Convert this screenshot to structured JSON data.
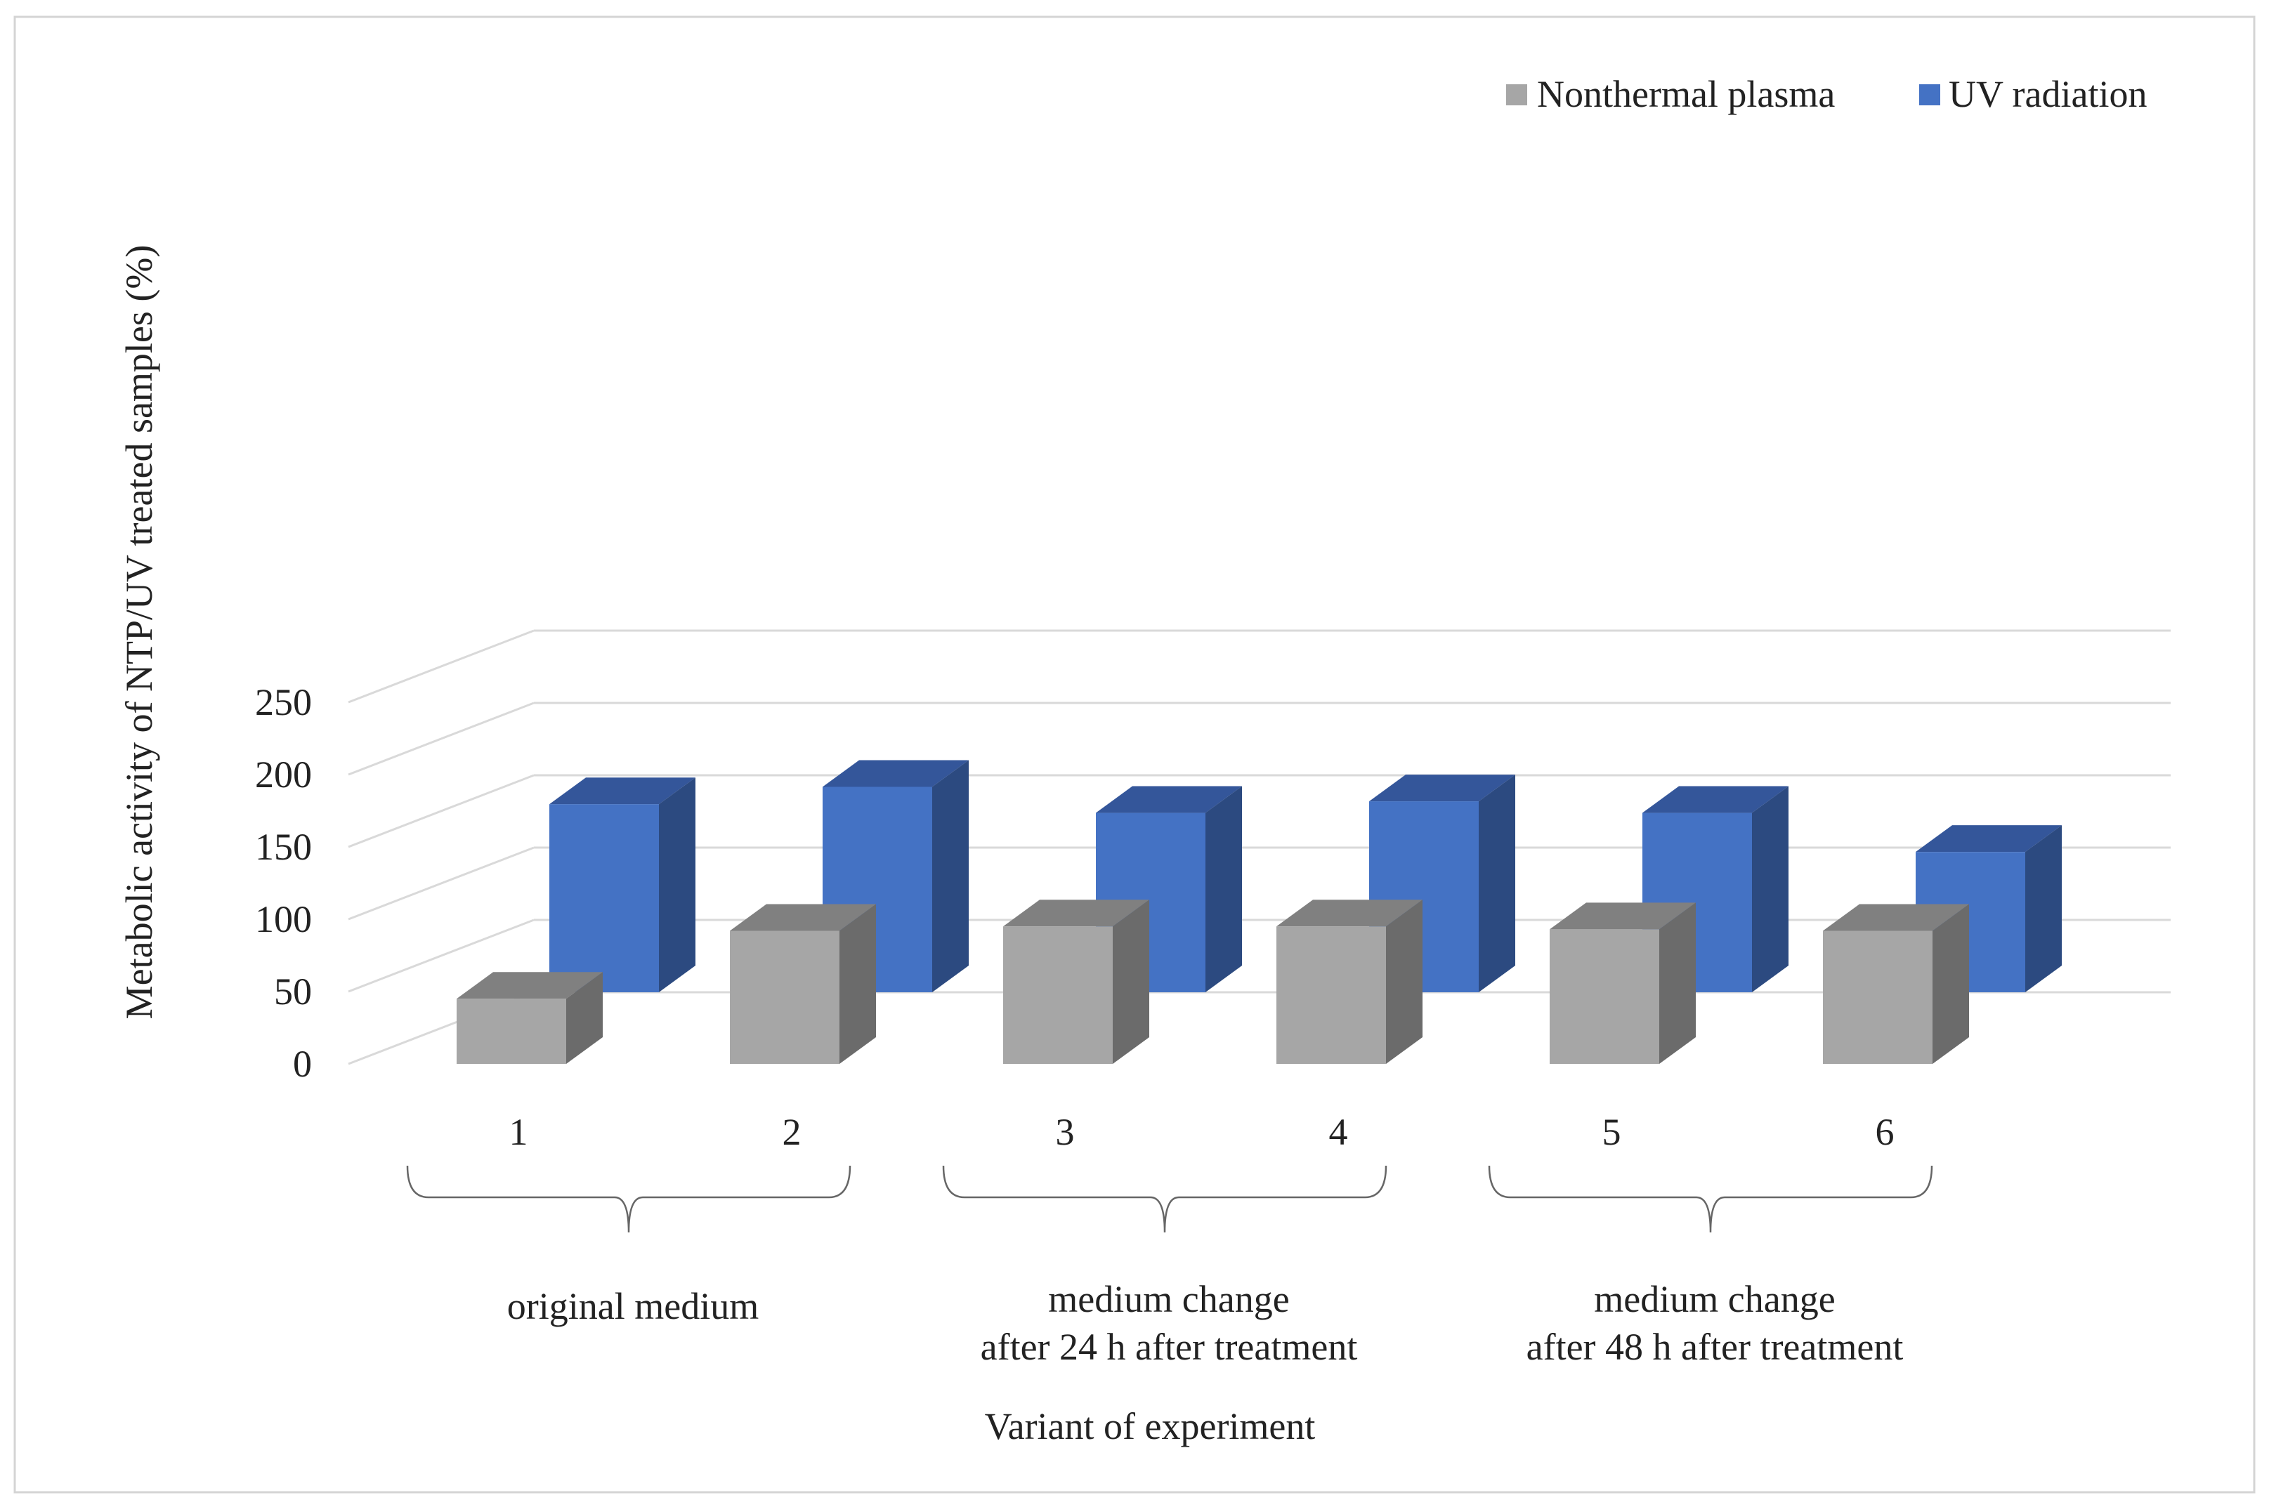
{
  "chart_data": {
    "type": "bar",
    "style": "3d-clustered",
    "ylabel": "Metabolic activity of NTP/UV treated samples (%)",
    "xlabel": "Variant of experiment",
    "ylim": [
      0,
      250
    ],
    "yticks": [
      "0",
      "50",
      "100",
      "150",
      "200",
      "250"
    ],
    "categories": [
      "1",
      "2",
      "3",
      "4",
      "5",
      "6"
    ],
    "groups": [
      {
        "lines": [
          "original medium"
        ]
      },
      {
        "lines": [
          "medium change",
          "after 24 h after treatment"
        ]
      },
      {
        "lines": [
          "medium change",
          "after 48 h after treatment"
        ]
      }
    ],
    "series": [
      {
        "name": "Nonthermal plasma",
        "values": [
          45,
          92,
          95,
          95,
          93,
          92
        ],
        "colors": {
          "front": "#a6a6a6",
          "side": "#6b6b6b",
          "top": "#808080"
        }
      },
      {
        "name": "UV radiation",
        "values": [
          130,
          142,
          124,
          132,
          124,
          97
        ],
        "colors": {
          "front": "#4472c4",
          "side": "#2c4a80",
          "top": "#34569a"
        }
      }
    ],
    "grid": true,
    "legend": "top-right"
  }
}
